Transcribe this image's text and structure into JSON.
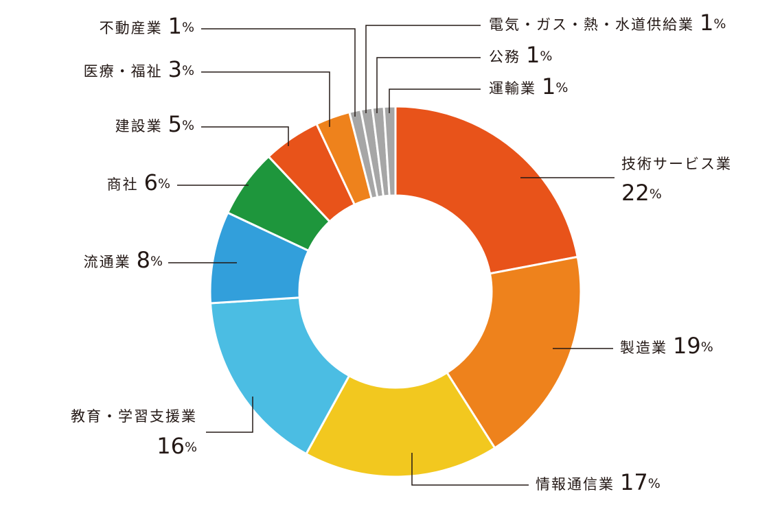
{
  "chart_data": {
    "type": "donut",
    "categories": [
      "技術サービス業",
      "製造業",
      "情報通信業",
      "教育・学習支援業",
      "流通業",
      "商社",
      "建設業",
      "医療・福祉",
      "不動産業",
      "電気・ガス・熱・水道供給業",
      "公務",
      "運輸業"
    ],
    "values": [
      22,
      19,
      17,
      16,
      8,
      6,
      5,
      3,
      1,
      1,
      1,
      1
    ],
    "value_labels": [
      "22%",
      "19%",
      "17%",
      "16%",
      "8%",
      "6%",
      "5%",
      "3%",
      "1%",
      "1%",
      "1%",
      "1%"
    ],
    "colors": [
      "#e8531a",
      "#ee821c",
      "#f2c81f",
      "#4bbde3",
      "#329fdb",
      "#1e963c",
      "#e8531a",
      "#ee821c",
      "#a6a6a6",
      "#a6a6a6",
      "#a6a6a6",
      "#a6a6a6"
    ]
  }
}
